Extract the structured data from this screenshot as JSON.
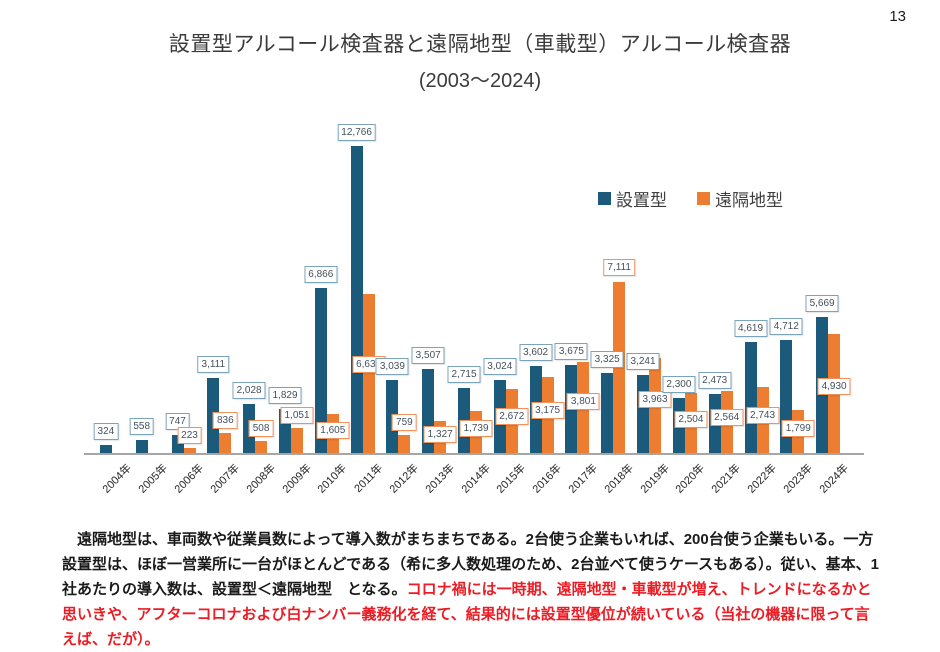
{
  "page": {
    "number": "13"
  },
  "title": {
    "line1": "設置型アルコール検査器と遠隔地型（車載型）アルコール検査器",
    "line2": "(2003～2024)"
  },
  "chart_data": {
    "type": "bar",
    "title": "設置型アルコール検査器と遠隔地型（車載型）アルコール検査器 (2003～2024)",
    "categories": [
      "2004年",
      "2005年",
      "2006年",
      "2007年",
      "2008年",
      "2009年",
      "2010年",
      "2011年",
      "2012年",
      "2013年",
      "2014年",
      "2015年",
      "2016年",
      "2017年",
      "2018年",
      "2019年",
      "2020年",
      "2021年",
      "2022年",
      "2023年",
      "2024年"
    ],
    "series": [
      {
        "name": "設置型",
        "color": "#1b5a7a",
        "label_border": "#7ca3bc",
        "values": [
          324,
          558,
          747,
          3111,
          2028,
          1829,
          6866,
          12766,
          3039,
          3507,
          2715,
          3024,
          3602,
          3675,
          3325,
          3241,
          2300,
          2473,
          4619,
          4712,
          5669
        ]
      },
      {
        "name": "遠隔地型",
        "color": "#ed7d31",
        "label_border": "#f0925c",
        "values": [
          null,
          null,
          223,
          836,
          508,
          1051,
          1605,
          6632,
          759,
          1327,
          1739,
          2672,
          3175,
          3801,
          7111,
          3963,
          2504,
          2564,
          2743,
          1799,
          4930
        ]
      }
    ],
    "xlabel": "",
    "ylabel": "",
    "ylim": [
      0,
      13000
    ],
    "grid": false,
    "data_labels": true,
    "legend_position": "top-right",
    "x_label_rotation": 45
  },
  "commentary": {
    "text_black": "　遠隔地型は、車両数や従業員数によって導入数がまちまちである。2台使う企業もいれば、200台使う企業もいる。一方設置型は、ほぼ一営業所に一台がほとんどである（希に多人数処理のため、2台並べて使うケースもある）。従い、基本、1社あたりの導入数は、設置型＜遠隔地型　となる。",
    "text_red": "コロナ禍には一時期、遠隔地型・車載型が増え、トレンドになるかと思いきや、アフターコロナおよび白ナンバー義務化を経て、結果的には設置型優位が続いている（当社の機器に限って言えば、だが）。",
    "red_color": "#ec1c24",
    "black_color": "#1a1a1a"
  }
}
